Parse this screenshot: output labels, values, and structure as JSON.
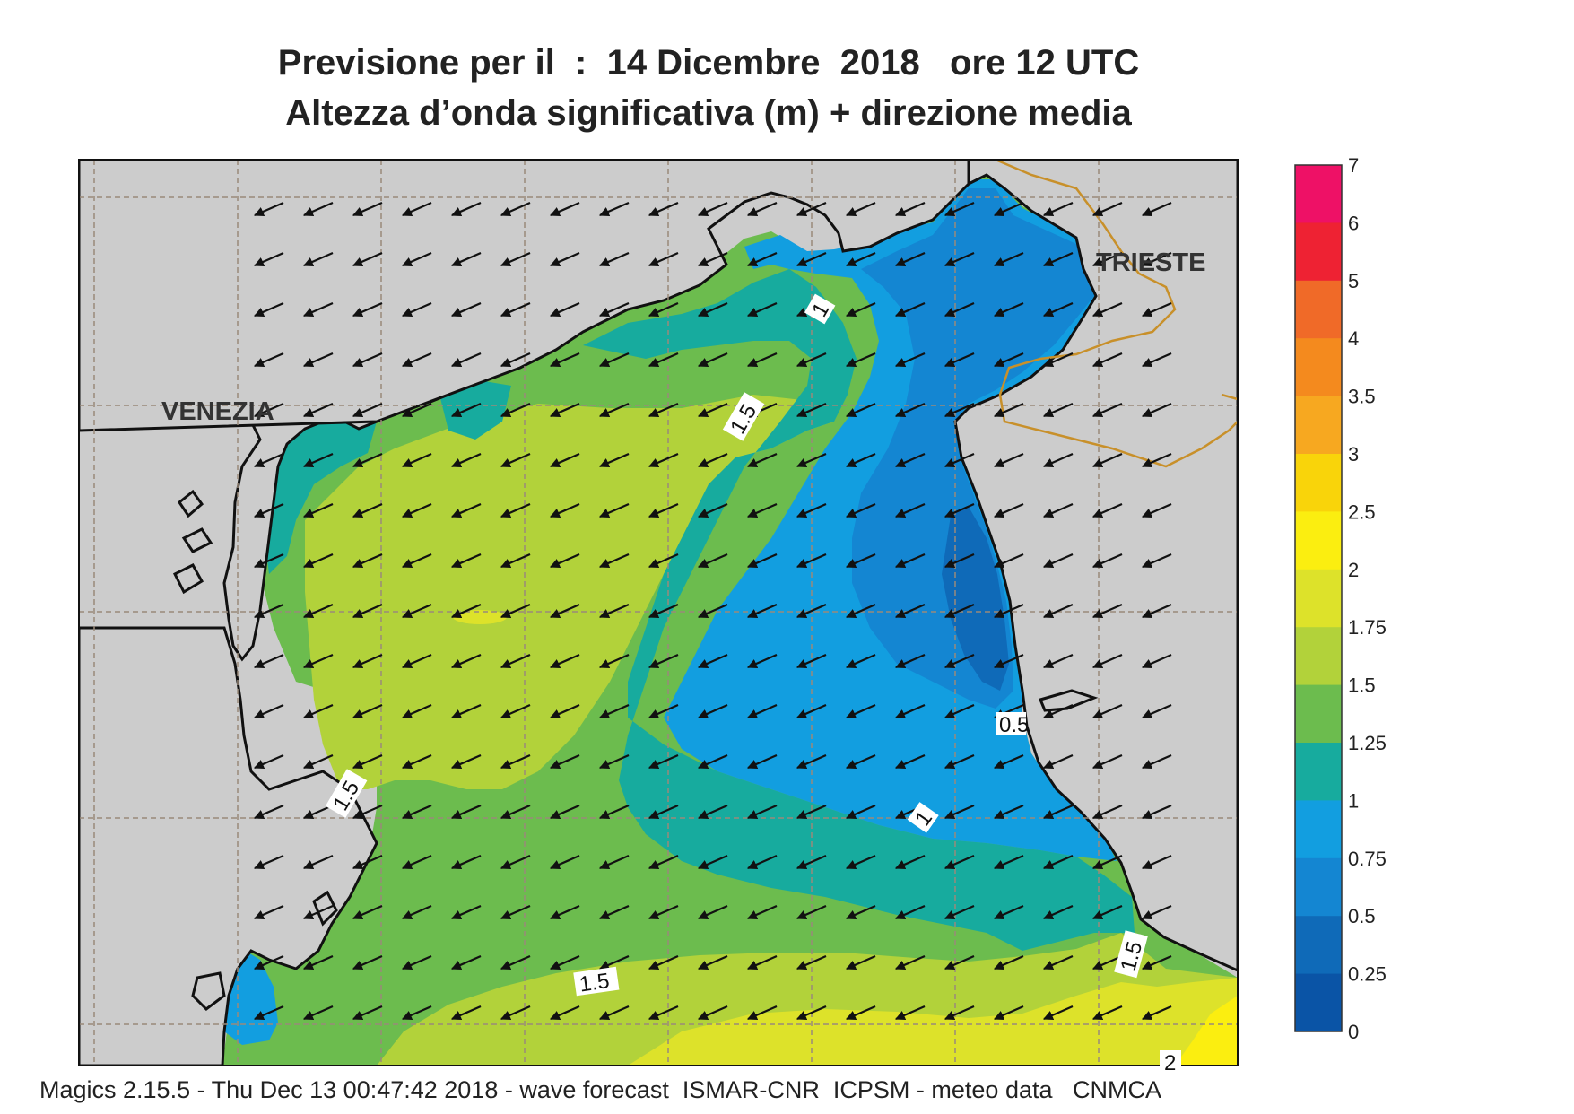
{
  "title": {
    "line1": "Previsione per il  :  14 Dicembre  2018   ore 12 UTC",
    "line2": "Altezza d’onda significativa (m) + direzione media"
  },
  "cities": [
    {
      "name": "VENEZIA"
    },
    {
      "name": "TRIESTE"
    }
  ],
  "contour_labels": [
    "1",
    "1.5",
    "1.5",
    "0.5",
    "1",
    "1.5",
    "1.5",
    "2"
  ],
  "legend": {
    "levels": [
      "7",
      "6",
      "5",
      "4",
      "3.5",
      "3",
      "2.5",
      "2",
      "1.75",
      "1.5",
      "1.25",
      "1",
      "0.75",
      "0.5",
      "0.25",
      "0"
    ],
    "colors": [
      "#ee1166",
      "#ee2233",
      "#f06a28",
      "#f48a1e",
      "#f7a820",
      "#f9d40a",
      "#fbee10",
      "#dde22a",
      "#b2d23a",
      "#6cbc4e",
      "#17ab9e",
      "#129ee0",
      "#1486d2",
      "#0f6ab8",
      "#0a54a6"
    ]
  },
  "map_colors": {
    "land": "#cccccc",
    "coast": "#111111",
    "border": "#c8902a",
    "grid": "#9a8a7a",
    "arrow": "#111111"
  },
  "footer": "Magics 2.15.5 - Thu Dec 13 00:47:42 2018 - wave forecast  ISMAR-CNR  ICPSM - meteo data   CNMCA"
}
